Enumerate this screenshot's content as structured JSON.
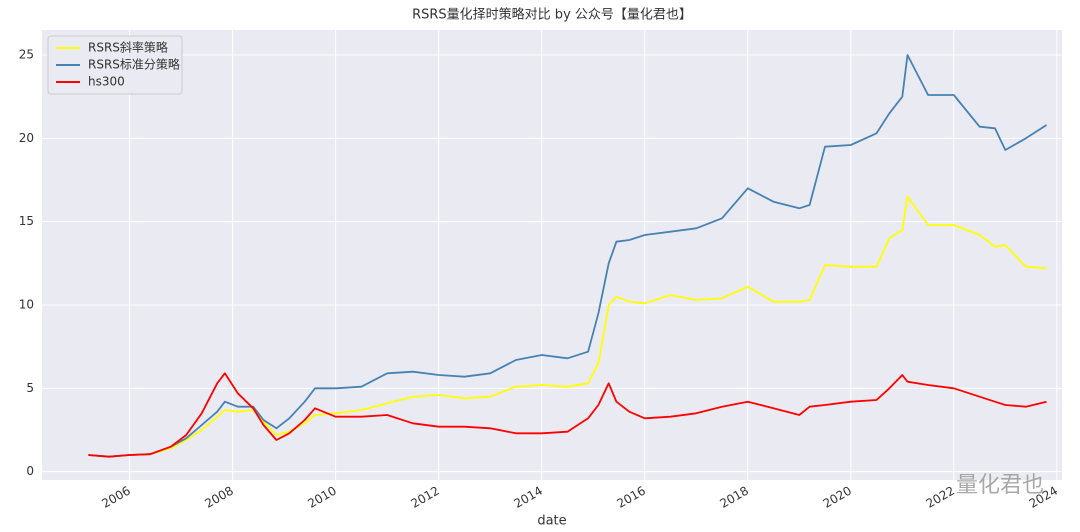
{
  "chart_data": {
    "type": "line",
    "title": "RSRS量化择时策略对比 by 公众号【量化君也】",
    "x_label": "date",
    "watermark": "量化君也",
    "x": [
      2005.2,
      2005.6,
      2006.0,
      2006.4,
      2006.8,
      2007.1,
      2007.4,
      2007.7,
      2007.85,
      2008.1,
      2008.4,
      2008.6,
      2008.85,
      2009.1,
      2009.4,
      2009.6,
      2010.0,
      2010.5,
      2011.0,
      2011.5,
      2012.0,
      2012.5,
      2013.0,
      2013.5,
      2014.0,
      2014.5,
      2014.9,
      2015.1,
      2015.3,
      2015.45,
      2015.7,
      2016.0,
      2016.5,
      2017.0,
      2017.5,
      2018.0,
      2018.5,
      2019.0,
      2019.2,
      2019.5,
      2020.0,
      2020.5,
      2020.75,
      2021.0,
      2021.1,
      2021.5,
      2022.0,
      2022.5,
      2022.8,
      2023.0,
      2023.4,
      2023.8
    ],
    "series": [
      {
        "name": "RSRS斜率策略",
        "color": "#ffff00",
        "values": [
          1.0,
          0.9,
          1.0,
          1.05,
          1.4,
          1.9,
          2.5,
          3.3,
          3.7,
          3.6,
          3.7,
          3.0,
          2.2,
          2.4,
          2.9,
          3.4,
          3.5,
          3.7,
          4.1,
          4.5,
          4.6,
          4.4,
          4.5,
          5.1,
          5.2,
          5.1,
          5.3,
          6.5,
          10.0,
          10.5,
          10.2,
          10.1,
          10.6,
          10.3,
          10.4,
          11.1,
          10.2,
          10.2,
          10.3,
          12.4,
          12.3,
          12.3,
          14.0,
          14.5,
          16.5,
          14.8,
          14.8,
          14.2,
          13.5,
          13.6,
          12.3,
          12.2
        ]
      },
      {
        "name": "RSRS标准分策略",
        "color": "#4682b4",
        "values": [
          1.0,
          0.9,
          1.0,
          1.05,
          1.5,
          2.0,
          2.8,
          3.6,
          4.2,
          3.9,
          3.9,
          3.1,
          2.6,
          3.2,
          4.2,
          5.0,
          5.0,
          5.1,
          5.9,
          6.0,
          5.8,
          5.7,
          5.9,
          6.7,
          7.0,
          6.8,
          7.2,
          9.5,
          12.5,
          13.8,
          13.9,
          14.2,
          14.4,
          14.6,
          15.2,
          17.0,
          16.2,
          15.8,
          16.0,
          19.5,
          19.6,
          20.3,
          21.5,
          22.5,
          25.0,
          22.6,
          22.6,
          20.7,
          20.6,
          19.3,
          20.0,
          20.8
        ]
      },
      {
        "name": "hs300",
        "color": "#ff0000",
        "values": [
          1.0,
          0.9,
          1.0,
          1.05,
          1.5,
          2.2,
          3.5,
          5.3,
          5.9,
          4.7,
          3.8,
          2.8,
          1.9,
          2.3,
          3.1,
          3.8,
          3.3,
          3.3,
          3.4,
          2.9,
          2.7,
          2.7,
          2.6,
          2.3,
          2.3,
          2.4,
          3.2,
          4.0,
          5.3,
          4.2,
          3.6,
          3.2,
          3.3,
          3.5,
          3.9,
          4.2,
          3.8,
          3.4,
          3.9,
          4.0,
          4.2,
          4.3,
          5.0,
          5.8,
          5.4,
          5.2,
          5.0,
          4.5,
          4.2,
          4.0,
          3.9,
          4.2
        ]
      }
    ],
    "xlim": [
      2004.3,
      2024.1
    ],
    "xticks": [
      2006,
      2008,
      2010,
      2012,
      2014,
      2016,
      2018,
      2020,
      2022,
      2024
    ],
    "ylim": [
      -0.5,
      26.5
    ],
    "yticks": [
      0,
      5,
      10,
      15,
      20,
      25
    ],
    "grid": true,
    "legend": "upper-left"
  }
}
